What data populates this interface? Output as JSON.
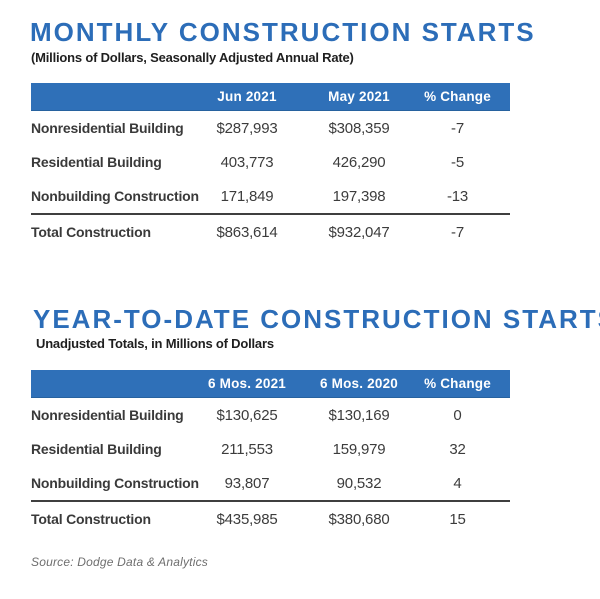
{
  "colors": {
    "title_blue": "#2C6DB8",
    "header_bar_blue": "#2F70B8",
    "body_text": "#3c3c3c",
    "source_gray": "#6e6e6e"
  },
  "chart_data": [
    {
      "type": "table",
      "title": "MONTHLY CONSTRUCTION STARTS",
      "subtitle": "(Millions of Dollars, Seasonally Adjusted Annual Rate)",
      "columns": [
        "",
        "Jun 2021",
        "May 2021",
        "% Change"
      ],
      "rows": [
        [
          "Nonresidential Building",
          "$287,993",
          "$308,359",
          "-7"
        ],
        [
          "Residential Building",
          "403,773",
          "426,290",
          "-5"
        ],
        [
          "Nonbuilding Construction",
          "171,849",
          "197,398",
          "-13"
        ],
        [
          "Total Construction",
          "$863,614",
          "$932,047",
          "-7"
        ]
      ],
      "numeric": {
        "categories": [
          "Nonresidential Building",
          "Residential Building",
          "Nonbuilding Construction",
          "Total Construction"
        ],
        "series": [
          {
            "name": "Jun 2021",
            "values": [
              287993,
              403773,
              171849,
              863614
            ]
          },
          {
            "name": "May 2021",
            "values": [
              308359,
              426290,
              197398,
              932047
            ]
          },
          {
            "name": "% Change",
            "values": [
              -7,
              -5,
              -13,
              -7
            ]
          }
        ]
      }
    },
    {
      "type": "table",
      "title": "YEAR-TO-DATE CONSTRUCTION STARTS",
      "subtitle": "Unadjusted Totals, in Millions of Dollars",
      "columns": [
        "",
        "6 Mos. 2021",
        "6 Mos. 2020",
        "% Change"
      ],
      "rows": [
        [
          "Nonresidential Building",
          "$130,625",
          "$130,169",
          "0"
        ],
        [
          "Residential Building",
          "211,553",
          "159,979",
          "32"
        ],
        [
          "Nonbuilding Construction",
          "93,807",
          "90,532",
          "4"
        ],
        [
          "Total Construction",
          "$435,985",
          "$380,680",
          "15"
        ]
      ],
      "numeric": {
        "categories": [
          "Nonresidential Building",
          "Residential Building",
          "Nonbuilding Construction",
          "Total Construction"
        ],
        "series": [
          {
            "name": "6 Mos. 2021",
            "values": [
              130625,
              211553,
              93807,
              435985
            ]
          },
          {
            "name": "6 Mos. 2020",
            "values": [
              130169,
              159979,
              90532,
              380680
            ]
          },
          {
            "name": "% Change",
            "values": [
              0,
              32,
              4,
              15
            ]
          }
        ]
      }
    }
  ],
  "source": "Source: Dodge Data & Analytics"
}
